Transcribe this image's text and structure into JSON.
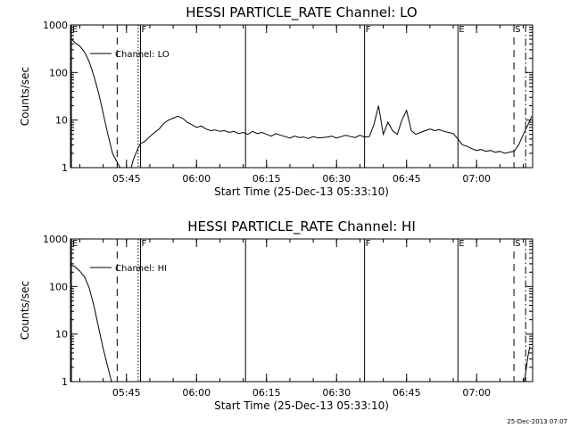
{
  "footer": {
    "date_stamp": "25-Dec-2013 07:07"
  },
  "chart_data": [
    {
      "type": "line",
      "title": "HESSI PARTICLE_RATE Channel: LO",
      "xlabel": "Start Time (25-Dec-13 05:33:10)",
      "ylabel": "Counts/sec",
      "yscale": "log",
      "ylim": [
        1,
        1000
      ],
      "x_unit": "minutes after 05:33:10",
      "xlim": [
        0,
        99
      ],
      "x_ticks": [
        {
          "x": 12,
          "label": "05:45"
        },
        {
          "x": 27,
          "label": "06:00"
        },
        {
          "x": 42,
          "label": "06:15"
        },
        {
          "x": 57,
          "label": "06:30"
        },
        {
          "x": 72,
          "label": "06:45"
        },
        {
          "x": 87,
          "label": "07:00"
        }
      ],
      "y_ticks": [
        {
          "y": 1,
          "label": "1"
        },
        {
          "x": 0,
          "y": 10,
          "label": "10"
        },
        {
          "y": 100,
          "label": "100"
        },
        {
          "y": 1000,
          "label": "1000"
        }
      ],
      "legend": {
        "placement": "top-left",
        "entries": [
          "Channel: LO"
        ]
      },
      "grid": false,
      "events": [
        {
          "x": 0.2,
          "style": "solid",
          "flag": "E"
        },
        {
          "x": 10,
          "style": "dashed",
          "flag": ""
        },
        {
          "x": 14.5,
          "style": "dotted",
          "flag": ""
        },
        {
          "x": 15,
          "style": "solid",
          "flag": "F"
        },
        {
          "x": 37.5,
          "style": "solid",
          "flag": ""
        },
        {
          "x": 63,
          "style": "solid",
          "flag": "F"
        },
        {
          "x": 83,
          "style": "solid",
          "flag": "E"
        },
        {
          "x": 95,
          "style": "dashed",
          "flag": "S"
        },
        {
          "x": 97.5,
          "style": "dashdot",
          "flag": ""
        }
      ],
      "series": [
        {
          "name": "Channel: LO",
          "segments": [
            [
              [
                0.3,
                500
              ],
              [
                1,
                420
              ],
              [
                2,
                360
              ],
              [
                3,
                270
              ],
              [
                4,
                170
              ],
              [
                5,
                85
              ],
              [
                6,
                38
              ],
              [
                7,
                14
              ],
              [
                8,
                5
              ],
              [
                9,
                2
              ],
              [
                10,
                1.3
              ],
              [
                10.6,
                1
              ]
            ],
            [
              [
                13,
                1
              ],
              [
                13.5,
                1.5
              ],
              [
                14,
                2
              ],
              [
                14.5,
                2.6
              ],
              [
                15,
                3.2
              ],
              [
                16,
                3.6
              ],
              [
                17,
                4.5
              ],
              [
                18,
                5.5
              ],
              [
                19,
                6.5
              ],
              [
                20,
                8.5
              ],
              [
                21,
                10
              ],
              [
                22,
                11
              ],
              [
                23,
                12
              ],
              [
                24,
                11
              ],
              [
                25,
                9
              ],
              [
                26,
                8
              ],
              [
                27,
                7
              ],
              [
                28,
                7.5
              ],
              [
                29,
                6.5
              ],
              [
                30,
                6
              ],
              [
                31,
                6.2
              ],
              [
                32,
                5.8
              ],
              [
                33,
                6
              ],
              [
                34,
                5.5
              ],
              [
                35,
                5.8
              ],
              [
                36,
                5.2
              ],
              [
                37,
                5.5
              ],
              [
                38,
                5
              ],
              [
                39,
                5.8
              ],
              [
                40,
                5.2
              ],
              [
                41,
                5.5
              ],
              [
                42,
                5
              ],
              [
                43,
                4.6
              ],
              [
                44,
                5.2
              ],
              [
                45,
                4.8
              ],
              [
                46,
                4.5
              ],
              [
                47,
                4.2
              ],
              [
                48,
                4.6
              ],
              [
                49,
                4.3
              ],
              [
                50,
                4.4
              ],
              [
                51,
                4.1
              ],
              [
                52,
                4.5
              ],
              [
                53,
                4.2
              ],
              [
                54,
                4.3
              ],
              [
                55,
                4.4
              ],
              [
                56,
                4.6
              ],
              [
                57,
                4.2
              ],
              [
                58,
                4.5
              ],
              [
                59,
                4.8
              ],
              [
                60,
                4.5
              ],
              [
                61,
                4.3
              ],
              [
                62,
                4.8
              ],
              [
                63,
                4.4
              ],
              [
                64,
                4.5
              ],
              [
                65,
                8
              ],
              [
                66,
                20
              ],
              [
                67,
                5
              ],
              [
                68,
                9
              ],
              [
                69,
                6
              ],
              [
                70,
                5
              ],
              [
                71,
                10
              ],
              [
                72,
                16
              ],
              [
                73,
                6
              ],
              [
                74,
                5
              ],
              [
                75,
                5.5
              ],
              [
                76,
                6
              ],
              [
                77,
                6.5
              ],
              [
                78,
                6
              ],
              [
                79,
                6.3
              ],
              [
                80,
                5.8
              ],
              [
                81,
                5.5
              ],
              [
                82,
                5.2
              ],
              [
                83,
                4
              ],
              [
                84,
                3
              ],
              [
                85,
                2.8
              ],
              [
                86,
                2.5
              ],
              [
                87,
                2.3
              ],
              [
                88,
                2.4
              ],
              [
                89,
                2.2
              ],
              [
                90,
                2.3
              ],
              [
                91,
                2.1
              ],
              [
                92,
                2.2
              ],
              [
                93,
                2
              ],
              [
                94,
                2.1
              ],
              [
                95,
                2.2
              ],
              [
                96,
                3
              ],
              [
                97,
                5
              ],
              [
                98,
                8
              ],
              [
                98.8,
                12
              ]
            ]
          ]
        }
      ]
    },
    {
      "type": "line",
      "title": "HESSI PARTICLE_RATE Channel: HI",
      "xlabel": "Start Time (25-Dec-13 05:33:10)",
      "ylabel": "Counts/sec",
      "yscale": "log",
      "ylim": [
        1,
        1000
      ],
      "x_unit": "minutes after 05:33:10",
      "xlim": [
        0,
        99
      ],
      "x_ticks": [
        {
          "x": 12,
          "label": "05:45"
        },
        {
          "x": 27,
          "label": "06:00"
        },
        {
          "x": 42,
          "label": "06:15"
        },
        {
          "x": 57,
          "label": "06:30"
        },
        {
          "x": 72,
          "label": "06:45"
        },
        {
          "x": 87,
          "label": "07:00"
        }
      ],
      "y_ticks": [
        {
          "y": 1,
          "label": "1"
        },
        {
          "y": 10,
          "label": "10"
        },
        {
          "y": 100,
          "label": "100"
        },
        {
          "y": 1000,
          "label": "1000"
        }
      ],
      "legend": {
        "placement": "top-left",
        "entries": [
          "Channel: HI"
        ]
      },
      "grid": false,
      "events": [
        {
          "x": 0.2,
          "style": "solid",
          "flag": "E"
        },
        {
          "x": 10,
          "style": "dashed",
          "flag": ""
        },
        {
          "x": 14.5,
          "style": "dotted",
          "flag": ""
        },
        {
          "x": 15,
          "style": "solid",
          "flag": "F"
        },
        {
          "x": 37.5,
          "style": "solid",
          "flag": ""
        },
        {
          "x": 63,
          "style": "solid",
          "flag": "F"
        },
        {
          "x": 83,
          "style": "solid",
          "flag": "E"
        },
        {
          "x": 95,
          "style": "dashed",
          "flag": "S"
        },
        {
          "x": 97.5,
          "style": "dashdot",
          "flag": ""
        }
      ],
      "series": [
        {
          "name": "Channel: HI",
          "segments": [
            [
              [
                0.3,
                280
              ],
              [
                1,
                260
              ],
              [
                2,
                210
              ],
              [
                3,
                160
              ],
              [
                4,
                95
              ],
              [
                5,
                40
              ],
              [
                6,
                14
              ],
              [
                7,
                5
              ],
              [
                8,
                2
              ],
              [
                8.8,
                1
              ]
            ],
            [
              [
                97.2,
                1
              ],
              [
                97.6,
                1.8
              ],
              [
                98,
                3.5
              ],
              [
                98.4,
                5.5
              ]
            ]
          ]
        }
      ]
    }
  ]
}
